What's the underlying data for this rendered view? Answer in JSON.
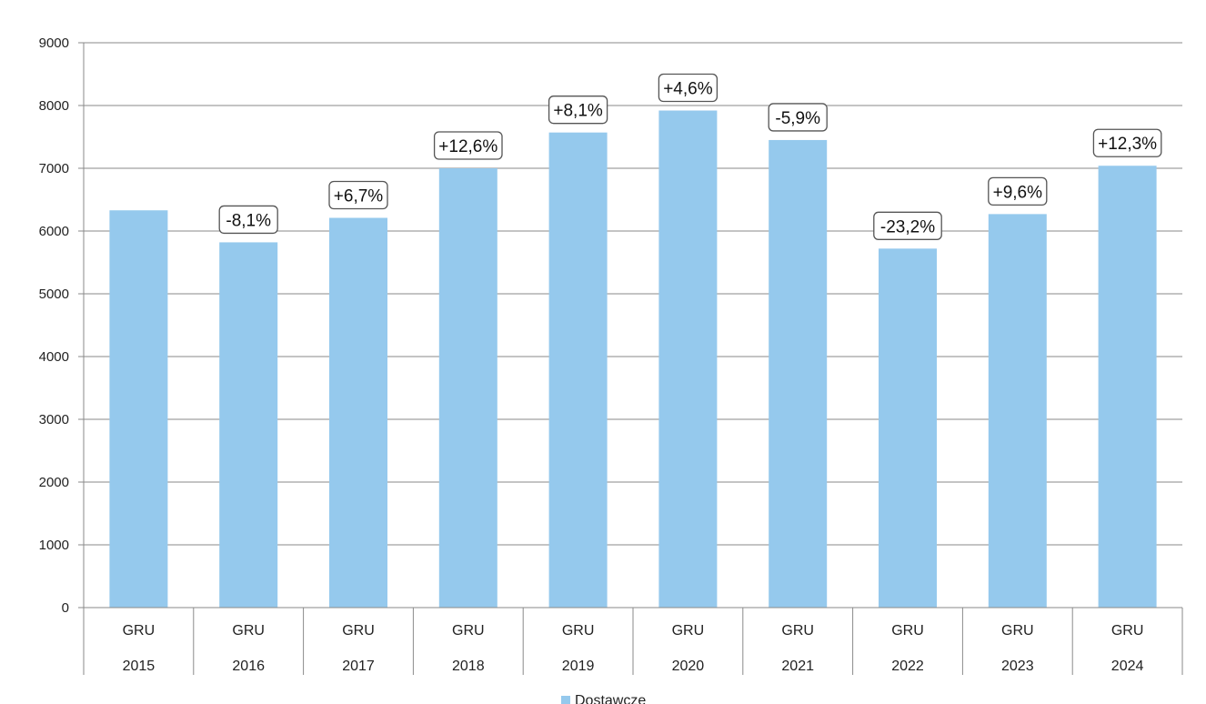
{
  "chart_data": {
    "type": "bar",
    "categories": [
      [
        "GRU",
        "2015"
      ],
      [
        "GRU",
        "2016"
      ],
      [
        "GRU",
        "2017"
      ],
      [
        "GRU",
        "2018"
      ],
      [
        "GRU",
        "2019"
      ],
      [
        "GRU",
        "2020"
      ],
      [
        "GRU",
        "2021"
      ],
      [
        "GRU",
        "2022"
      ],
      [
        "GRU",
        "2023"
      ],
      [
        "GRU",
        "2024"
      ]
    ],
    "series": [
      {
        "name": "Dostawcze",
        "color": "#95c9ed",
        "values": [
          6330,
          5820,
          6210,
          7000,
          7570,
          7920,
          7450,
          5720,
          6270,
          7040
        ],
        "data_labels": [
          "",
          "-8,1%",
          "+6,7%",
          "+12,6%",
          "+8,1%",
          "+4,6%",
          "-5,9%",
          "-23,2%",
          "+9,6%",
          "+12,3%"
        ]
      }
    ],
    "ylim": [
      0,
      9000
    ],
    "yticks": [
      0,
      1000,
      2000,
      3000,
      4000,
      5000,
      6000,
      7000,
      8000,
      9000
    ],
    "grid": true,
    "legend_position": "bottom",
    "title": "",
    "xlabel": "",
    "ylabel": ""
  }
}
